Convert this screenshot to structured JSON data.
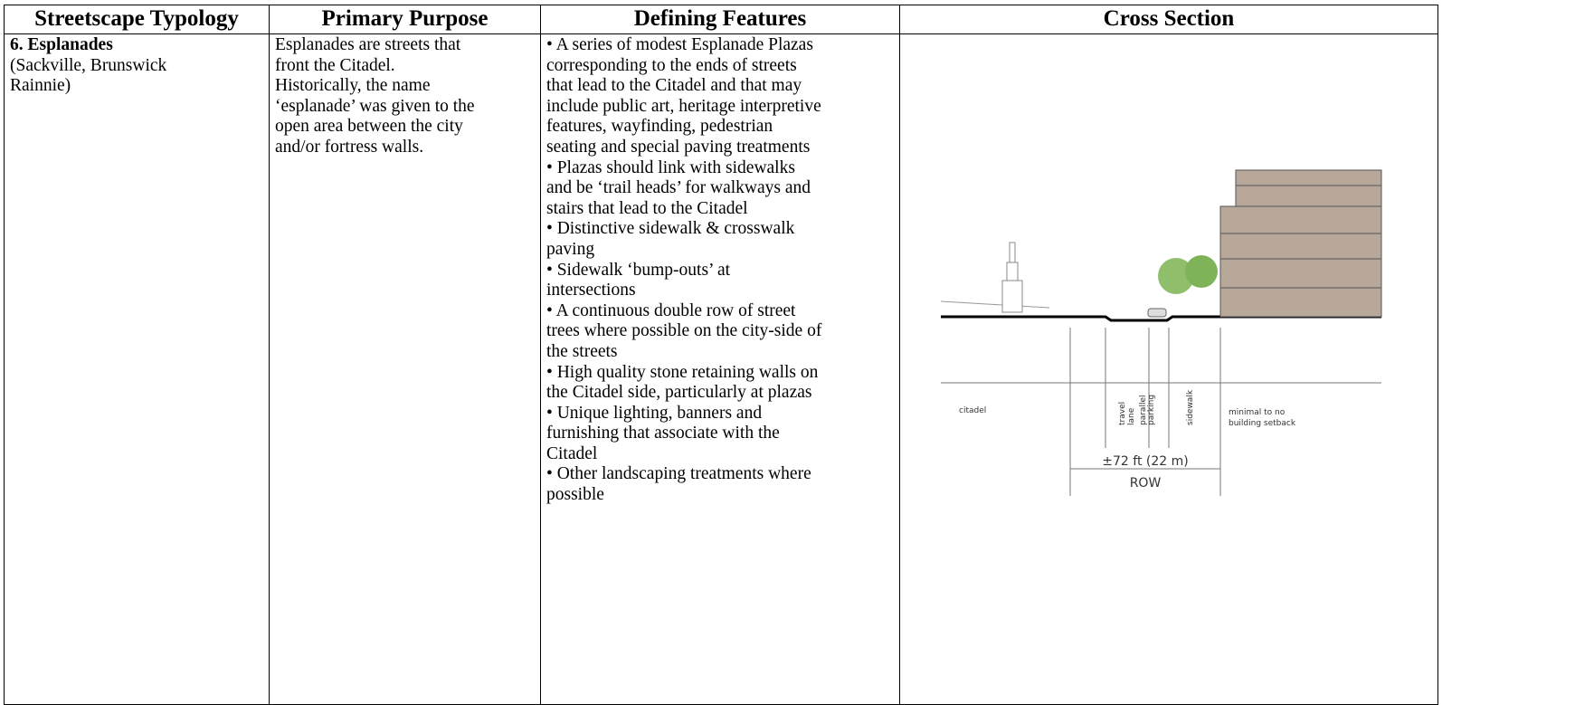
{
  "table": {
    "header": [
      "Streetscape Typology",
      "Primary Purpose",
      "Defining Features",
      "Cross Section"
    ],
    "row": {
      "typology": {
        "title": "6.  Esplanades",
        "lines": [
          "(Sackville, Brunswick",
          "Rainnie)"
        ]
      },
      "purpose": [
        "Esplanades are streets that",
        "front the Citadel.",
        "Historically, the name",
        "‘esplanade’ was given to the",
        "open area between the city",
        "and/or fortress walls."
      ],
      "features": [
        [
          "• A series of modest Esplanade Plazas",
          "corresponding to the ends of streets",
          "that lead to the Citadel and that may",
          "include public art, heritage interpretive",
          "features, wayfinding, pedestrian",
          "seating and special paving treatments"
        ],
        [
          "• Plazas should link with sidewalks",
          "and be ‘trail heads’ for walkways and",
          "stairs that lead to the Citadel"
        ],
        [
          "• Distinctive sidewalk & crosswalk",
          "paving"
        ],
        [
          "• Sidewalk ‘bump-outs’ at",
          "intersections"
        ],
        [
          "• A continuous double row of street",
          "trees where possible on the city-side of",
          "the streets"
        ],
        [
          "• High quality stone retaining walls on",
          "the Citadel side, particularly at plazas"
        ],
        [
          "• Unique lighting, banners and",
          "furnishing that associate with the",
          "Citadel"
        ],
        [
          "• Other landscaping treatments where",
          "possible"
        ]
      ],
      "cross_section": {
        "citadel": "citadel",
        "travel_lane": [
          "travel",
          "lane"
        ],
        "parallel_parking": [
          "parallel",
          "parking"
        ],
        "sidewalk": "sidewalk",
        "setback": [
          "minimal to no",
          "building setback"
        ],
        "dimension": "±72 ft (22 m)",
        "row_label": "ROW"
      }
    }
  }
}
